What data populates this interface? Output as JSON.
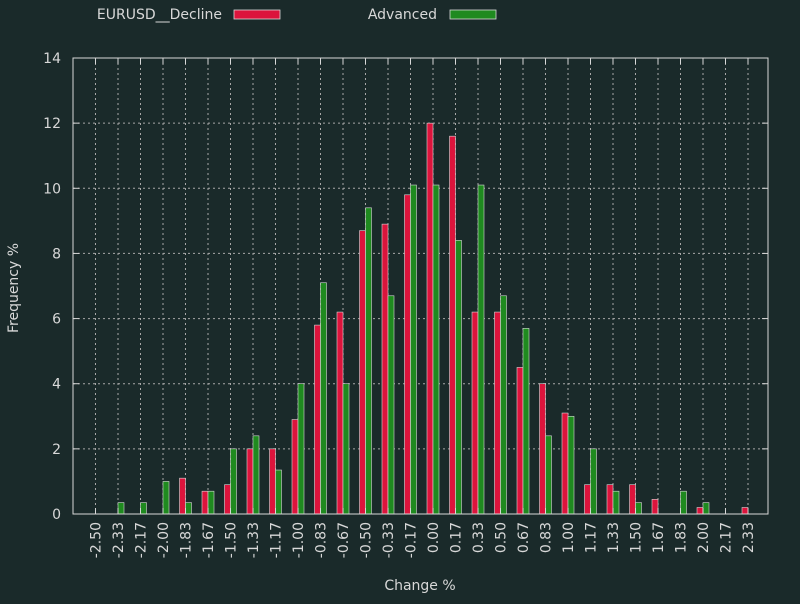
{
  "chart_data": {
    "type": "bar",
    "xlabel": "Change %",
    "ylabel": "Frequency %",
    "ylim": [
      0,
      14
    ],
    "yticks": [
      0,
      2,
      4,
      6,
      8,
      10,
      12,
      14
    ],
    "grid": true,
    "legend_placement": "top",
    "colors": {
      "background": "#1a2a2a",
      "frame": "#d8d8d8",
      "grid": "#a8a8a8",
      "text": "#d8d8d8"
    },
    "categories": [
      "-2.50",
      "-2.33",
      "-2.17",
      "-2.00",
      "-1.83",
      "-1.67",
      "-1.50",
      "-1.33",
      "-1.17",
      "-1.00",
      "-0.83",
      "-0.67",
      "-0.50",
      "-0.33",
      "-0.17",
      "0.00",
      "0.17",
      "0.33",
      "0.50",
      "0.67",
      "0.83",
      "1.00",
      "1.17",
      "1.33",
      "1.50",
      "1.67",
      "1.83",
      "2.00",
      "2.17",
      "2.33"
    ],
    "series": [
      {
        "name": "EURUSD__Decline",
        "color": "#dc143c",
        "values": [
          0,
          0,
          0,
          0,
          1.1,
          0.7,
          0.9,
          2.0,
          2.0,
          2.9,
          5.8,
          6.2,
          8.7,
          8.9,
          9.8,
          12.0,
          11.6,
          6.2,
          6.2,
          4.5,
          4.0,
          3.1,
          0.9,
          0.9,
          0.9,
          0.45,
          0,
          0.2,
          0,
          0.2
        ]
      },
      {
        "name": "Advanced",
        "color": "#1f8a1f",
        "values": [
          0,
          0.35,
          0.35,
          1.0,
          0.35,
          0.7,
          2.0,
          2.4,
          1.35,
          4.0,
          7.1,
          4.0,
          9.4,
          6.7,
          10.1,
          10.1,
          8.4,
          10.1,
          6.7,
          5.7,
          2.4,
          3.0,
          2.0,
          0.7,
          0.35,
          0,
          0.7,
          0.35,
          0,
          0
        ]
      }
    ]
  }
}
